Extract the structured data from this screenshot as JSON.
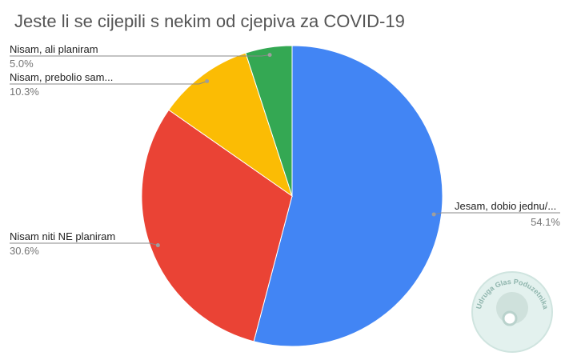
{
  "chart_data": {
    "type": "pie",
    "title": "Jeste li se cijepili s nekim od cjepiva za COVID-19",
    "categories": [
      "Jesam, dobio jednu/...",
      "Nisam niti NE planiram",
      "Nisam, prebolio sam...",
      "Nisam, ali planiram"
    ],
    "values": [
      54.1,
      30.6,
      10.3,
      5.0
    ],
    "value_labels": [
      "54.1%",
      "30.6%",
      "10.3%",
      "5.0%"
    ],
    "colors": [
      "#4285f4",
      "#ea4335",
      "#fbbc04",
      "#34a853"
    ],
    "watermark": "Udruga Glas Poduzetnika"
  }
}
